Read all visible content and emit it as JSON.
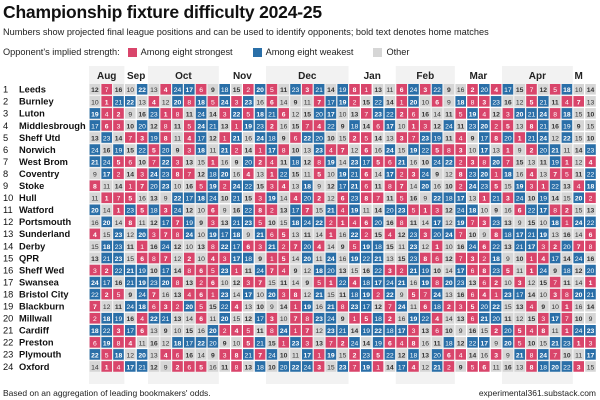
{
  "header": {
    "title": "Championship fixture difficulty 2024-25",
    "subtitle": "Numbers show projected final league positions and can be used to identify opponents; bold text denotes home matches",
    "legend_prefix": "Opponent's implied strength:"
  },
  "colors": {
    "strong": "#d9456b",
    "weak": "#2a6fa8",
    "other": "#d6d6d6",
    "text_on_color": "#ffffff",
    "text_on_other": "#333333"
  },
  "footer": {
    "source": "Based on an aggregation of leading bookmakers' odds.",
    "credit": "experimental361.substack.com"
  },
  "chart_data": {
    "type": "heatmap",
    "title": "Championship fixture difficulty 2024-25",
    "legend": [
      {
        "key": "strong",
        "label": "Among eight strongest"
      },
      {
        "key": "weak",
        "label": "Among eight weakest"
      },
      {
        "key": "other",
        "label": "Other"
      }
    ],
    "months": [
      {
        "label": "Aug",
        "games": 3
      },
      {
        "label": "Sep",
        "games": 2
      },
      {
        "label": "Oct",
        "games": 6
      },
      {
        "label": "Nov",
        "games": 4
      },
      {
        "label": "Dec",
        "games": 7
      },
      {
        "label": "Jan",
        "games": 4
      },
      {
        "label": "Feb",
        "games": 5
      },
      {
        "label": "Mar",
        "games": 4
      },
      {
        "label": "Apr",
        "games": 6
      },
      {
        "label": "M",
        "games": 1
      }
    ],
    "teams": [
      "Leeds",
      "Burnley",
      "Luton",
      "Middlesbrough",
      "Sheff Utd",
      "Norwich",
      "West Brom",
      "Coventry",
      "Stoke",
      "Hull",
      "Watford",
      "Portsmouth",
      "Sunderland",
      "Derby",
      "QPR",
      "Sheff Wed",
      "Swansea",
      "Bristol City",
      "Blackburn",
      "Millwall",
      "Cardiff",
      "Preston",
      "Plymouth",
      "Oxford"
    ],
    "fixtures": [
      [
        12,
        7,
        16,
        10,
        22,
        13,
        4,
        24,
        17,
        6,
        9,
        18,
        15,
        2,
        20,
        5,
        11,
        23,
        3,
        21,
        14,
        19,
        8,
        1,
        13,
        11,
        6,
        24,
        3,
        22,
        9,
        16,
        2,
        20,
        4,
        17,
        15,
        7,
        12,
        5,
        18,
        10,
        14
      ],
      [
        10,
        1,
        21,
        22,
        13,
        4,
        12,
        20,
        8,
        18,
        5,
        24,
        3,
        23,
        16,
        6,
        14,
        9,
        11,
        7,
        17,
        19,
        2,
        15,
        22,
        14,
        1,
        20,
        10,
        6,
        9,
        18,
        8,
        3,
        23,
        16,
        12,
        5,
        21,
        11,
        4,
        7,
        13
      ],
      [
        19,
        4,
        2,
        9,
        16,
        23,
        1,
        8,
        11,
        24,
        14,
        3,
        22,
        5,
        18,
        21,
        6,
        12,
        15,
        20,
        17,
        10,
        13,
        7,
        23,
        22,
        2,
        6,
        16,
        14,
        11,
        5,
        19,
        4,
        12,
        3,
        20,
        21,
        24,
        8,
        18,
        15,
        10
      ],
      [
        17,
        6,
        3,
        10,
        20,
        12,
        8,
        11,
        5,
        24,
        21,
        13,
        1,
        19,
        23,
        2,
        16,
        15,
        7,
        4,
        22,
        9,
        18,
        14,
        6,
        17,
        10,
        1,
        3,
        12,
        24,
        11,
        23,
        20,
        2,
        5,
        13,
        8,
        21,
        16,
        19,
        9,
        15
      ],
      [
        13,
        23,
        14,
        7,
        3,
        19,
        8,
        11,
        4,
        17,
        12,
        1,
        21,
        16,
        24,
        18,
        9,
        6,
        22,
        20,
        10,
        15,
        2,
        5,
        14,
        13,
        3,
        7,
        23,
        19,
        11,
        4,
        9,
        17,
        8,
        20,
        1,
        21,
        24,
        12,
        22,
        15,
        10
      ],
      [
        24,
        16,
        19,
        15,
        22,
        5,
        20,
        9,
        3,
        18,
        11,
        21,
        2,
        14,
        1,
        17,
        8,
        10,
        13,
        23,
        4,
        7,
        12,
        6,
        16,
        24,
        15,
        19,
        22,
        5,
        8,
        3,
        10,
        17,
        13,
        1,
        9,
        2,
        20,
        21,
        11,
        14,
        23
      ],
      [
        21,
        24,
        5,
        6,
        10,
        7,
        22,
        3,
        13,
        15,
        1,
        16,
        9,
        20,
        2,
        4,
        11,
        18,
        12,
        8,
        19,
        14,
        23,
        17,
        5,
        6,
        21,
        16,
        10,
        24,
        22,
        2,
        3,
        8,
        20,
        7,
        15,
        13,
        11,
        19,
        1,
        12,
        4
      ],
      [
        9,
        17,
        2,
        14,
        3,
        24,
        23,
        8,
        7,
        12,
        18,
        20,
        16,
        4,
        13,
        1,
        22,
        15,
        11,
        5,
        10,
        19,
        21,
        6,
        14,
        17,
        2,
        3,
        24,
        9,
        12,
        8,
        23,
        20,
        1,
        18,
        16,
        4,
        13,
        7,
        5,
        11,
        22
      ],
      [
        8,
        11,
        14,
        1,
        7,
        20,
        23,
        10,
        16,
        5,
        19,
        2,
        24,
        22,
        15,
        3,
        4,
        13,
        18,
        9,
        12,
        17,
        21,
        6,
        11,
        8,
        7,
        14,
        20,
        16,
        10,
        2,
        24,
        23,
        5,
        15,
        19,
        3,
        1,
        22,
        13,
        4,
        18
      ],
      [
        11,
        1,
        7,
        5,
        16,
        13,
        9,
        22,
        17,
        18,
        24,
        10,
        21,
        15,
        3,
        19,
        14,
        4,
        20,
        2,
        12,
        6,
        23,
        8,
        7,
        11,
        5,
        16,
        9,
        22,
        18,
        17,
        13,
        1,
        21,
        3,
        24,
        10,
        19,
        14,
        15,
        20,
        2
      ],
      [
        20,
        14,
        1,
        23,
        5,
        18,
        3,
        24,
        12,
        10,
        6,
        9,
        16,
        22,
        8,
        2,
        13,
        17,
        7,
        15,
        21,
        4,
        19,
        11,
        14,
        20,
        23,
        5,
        1,
        3,
        12,
        24,
        18,
        10,
        9,
        16,
        6,
        22,
        17,
        8,
        2,
        15,
        13
      ],
      [
        16,
        20,
        14,
        8,
        11,
        12,
        17,
        7,
        19,
        9,
        3,
        13,
        21,
        23,
        5,
        10,
        15,
        18,
        24,
        22,
        2,
        1,
        4,
        6,
        20,
        16,
        8,
        11,
        14,
        17,
        12,
        19,
        7,
        3,
        23,
        13,
        9,
        15,
        10,
        18,
        1,
        24,
        22
      ],
      [
        4,
        15,
        23,
        12,
        20,
        3,
        7,
        8,
        24,
        10,
        19,
        17,
        18,
        9,
        21,
        6,
        5,
        13,
        11,
        14,
        1,
        16,
        22,
        2,
        15,
        4,
        12,
        23,
        3,
        20,
        24,
        7,
        10,
        9,
        8,
        18,
        17,
        21,
        19,
        13,
        16,
        14,
        6
      ],
      [
        15,
        18,
        23,
        11,
        1,
        16,
        24,
        12,
        10,
        13,
        8,
        22,
        17,
        6,
        3,
        21,
        2,
        7,
        20,
        4,
        14,
        9,
        5,
        19,
        18,
        15,
        11,
        23,
        12,
        1,
        10,
        16,
        24,
        6,
        22,
        13,
        21,
        17,
        3,
        2,
        20,
        7,
        8
      ],
      [
        13,
        21,
        23,
        15,
        6,
        8,
        7,
        12,
        2,
        10,
        4,
        3,
        17,
        18,
        9,
        1,
        5,
        14,
        20,
        11,
        24,
        16,
        19,
        22,
        21,
        13,
        15,
        23,
        8,
        6,
        12,
        7,
        3,
        2,
        18,
        9,
        10,
        1,
        4,
        17,
        14,
        24,
        16
      ],
      [
        3,
        2,
        22,
        21,
        19,
        10,
        17,
        14,
        8,
        6,
        5,
        23,
        1,
        11,
        24,
        7,
        4,
        9,
        12,
        18,
        20,
        13,
        15,
        16,
        22,
        3,
        2,
        21,
        19,
        10,
        14,
        17,
        6,
        8,
        23,
        5,
        11,
        1,
        24,
        9,
        18,
        12,
        20
      ],
      [
        24,
        17,
        16,
        21,
        19,
        23,
        20,
        8,
        13,
        2,
        6,
        10,
        12,
        3,
        7,
        15,
        11,
        14,
        9,
        5,
        1,
        22,
        4,
        18,
        17,
        24,
        21,
        16,
        19,
        8,
        20,
        23,
        13,
        6,
        2,
        10,
        3,
        12,
        15,
        7,
        11,
        14,
        1
      ],
      [
        22,
        2,
        5,
        9,
        24,
        7,
        16,
        13,
        4,
        6,
        1,
        23,
        14,
        17,
        10,
        20,
        3,
        8,
        12,
        21,
        15,
        11,
        18,
        19,
        2,
        22,
        9,
        5,
        7,
        24,
        13,
        16,
        6,
        4,
        1,
        23,
        17,
        14,
        10,
        3,
        8,
        20,
        21
      ],
      [
        7,
        12,
        11,
        24,
        18,
        6,
        3,
        2,
        20,
        5,
        15,
        22,
        4,
        13,
        10,
        9,
        14,
        1,
        19,
        16,
        21,
        8,
        23,
        17,
        12,
        7,
        24,
        11,
        6,
        18,
        2,
        3,
        5,
        20,
        22,
        15,
        13,
        4,
        9,
        10,
        1,
        16,
        14
      ],
      [
        2,
        18,
        19,
        16,
        4,
        22,
        21,
        13,
        14,
        6,
        11,
        20,
        15,
        12,
        17,
        3,
        10,
        7,
        8,
        23,
        24,
        9,
        1,
        5,
        18,
        2,
        16,
        19,
        22,
        4,
        14,
        13,
        6,
        21,
        20,
        11,
        12,
        15,
        3,
        17,
        7,
        10,
        9
      ],
      [
        18,
        22,
        3,
        17,
        6,
        13,
        9,
        10,
        15,
        16,
        20,
        2,
        4,
        5,
        11,
        8,
        24,
        1,
        7,
        12,
        23,
        21,
        14,
        19,
        22,
        18,
        17,
        3,
        13,
        6,
        10,
        9,
        16,
        15,
        2,
        20,
        5,
        4,
        8,
        11,
        1,
        24,
        23
      ],
      [
        6,
        19,
        8,
        4,
        11,
        16,
        12,
        18,
        17,
        22,
        20,
        9,
        10,
        5,
        21,
        15,
        1,
        23,
        3,
        13,
        7,
        2,
        24,
        14,
        19,
        6,
        4,
        8,
        16,
        11,
        18,
        12,
        22,
        17,
        9,
        20,
        5,
        10,
        15,
        21,
        23,
        1,
        3
      ],
      [
        22,
        5,
        18,
        12,
        20,
        13,
        4,
        6,
        16,
        14,
        9,
        3,
        8,
        21,
        7,
        24,
        10,
        11,
        17,
        1,
        19,
        15,
        2,
        23,
        5,
        22,
        12,
        18,
        13,
        20,
        6,
        4,
        14,
        16,
        3,
        9,
        21,
        8,
        24,
        7,
        10,
        11,
        17
      ],
      [
        14,
        1,
        4,
        17,
        21,
        12,
        9,
        2,
        6,
        5,
        16,
        11,
        8,
        13,
        18,
        10,
        20,
        22,
        24,
        3,
        15,
        23,
        7,
        19,
        1,
        14,
        17,
        4,
        12,
        21,
        2,
        9,
        5,
        6,
        11,
        16,
        13,
        8,
        18,
        20,
        22,
        3,
        15
      ]
    ]
  }
}
